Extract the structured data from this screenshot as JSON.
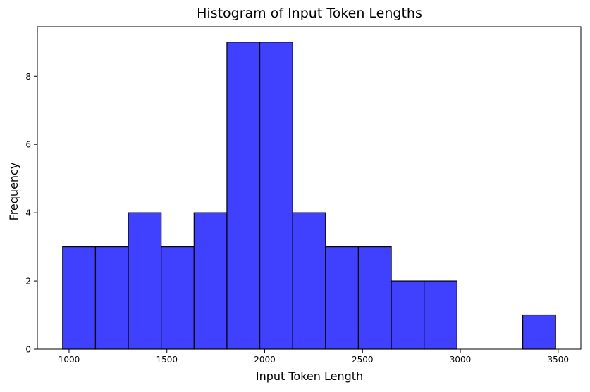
{
  "chart_data": {
    "type": "bar",
    "title": "Histogram of Input Token Lengths",
    "xlabel": "Input Token Length",
    "ylabel": "Frequency",
    "bin_edges": [
      967,
      1135,
      1303,
      1471,
      1639,
      1807,
      1975,
      2143,
      2311,
      2479,
      2647,
      2815,
      2983,
      3151,
      3319,
      3487
    ],
    "values": [
      3,
      3,
      4,
      3,
      4,
      9,
      9,
      4,
      3,
      3,
      2,
      2,
      0,
      0,
      1
    ],
    "xlim": [
      838,
      3616
    ],
    "ylim": [
      0,
      9.45
    ],
    "x_ticks": [
      1000,
      1500,
      2000,
      2500,
      3000,
      3500
    ],
    "y_ticks": [
      0,
      2,
      4,
      6,
      8
    ],
    "bar_color": "#4040ff",
    "edge_color": "#000000",
    "grid": false,
    "legend": "none"
  }
}
